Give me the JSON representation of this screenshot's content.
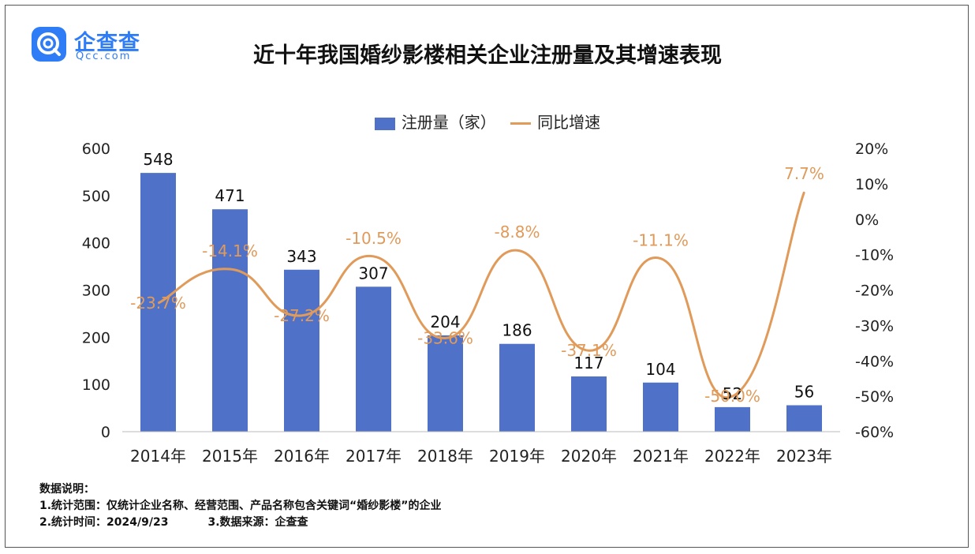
{
  "logo": {
    "name": "企查查",
    "sub": "Qcc.com"
  },
  "chart_data": {
    "type": "bar",
    "title": "近十年我国婚纱影楼相关企业注册量及其增速表现",
    "categories": [
      "2014年",
      "2015年",
      "2016年",
      "2017年",
      "2018年",
      "2019年",
      "2020年",
      "2021年",
      "2022年",
      "2023年"
    ],
    "series": [
      {
        "name": "注册量（家）",
        "type": "bar",
        "axis": "left",
        "color": "#4f72c8",
        "values": [
          548,
          471,
          343,
          307,
          204,
          186,
          117,
          104,
          52,
          56
        ],
        "labels": [
          "548",
          "471",
          "343",
          "307",
          "204",
          "186",
          "117",
          "104",
          "52",
          "56"
        ]
      },
      {
        "name": "同比增速",
        "type": "line",
        "axis": "right",
        "color": "#e09a5a",
        "values": [
          -23.7,
          -14.1,
          -27.2,
          -10.5,
          -33.6,
          -8.8,
          -37.1,
          -11.1,
          -50.0,
          7.7
        ],
        "labels": [
          "-23.7%",
          "-14.1%",
          "-27.2%",
          "-10.5%",
          "-33.6%",
          "-8.8%",
          "-37.1%",
          "-11.1%",
          "-50.0%",
          "7.7%"
        ]
      }
    ],
    "ylim": [
      0,
      600
    ],
    "yticks": [
      "0",
      "100",
      "200",
      "300",
      "400",
      "500",
      "600"
    ],
    "y2lim": [
      -60,
      20
    ],
    "y2ticks": [
      "-60%",
      "-50%",
      "-40%",
      "-30%",
      "-20%",
      "-10%",
      "0%",
      "10%",
      "20%"
    ],
    "legend": "top-center",
    "grid": false
  },
  "notes": {
    "heading": "数据说明：",
    "line1": "1.统计范围：仅统计企业名称、经营范围、产品名称包含关键词“婚纱影楼”的企业",
    "line2a": "2.统计时间：2024/9/23",
    "line2b": "3.数据来源：企查查"
  }
}
